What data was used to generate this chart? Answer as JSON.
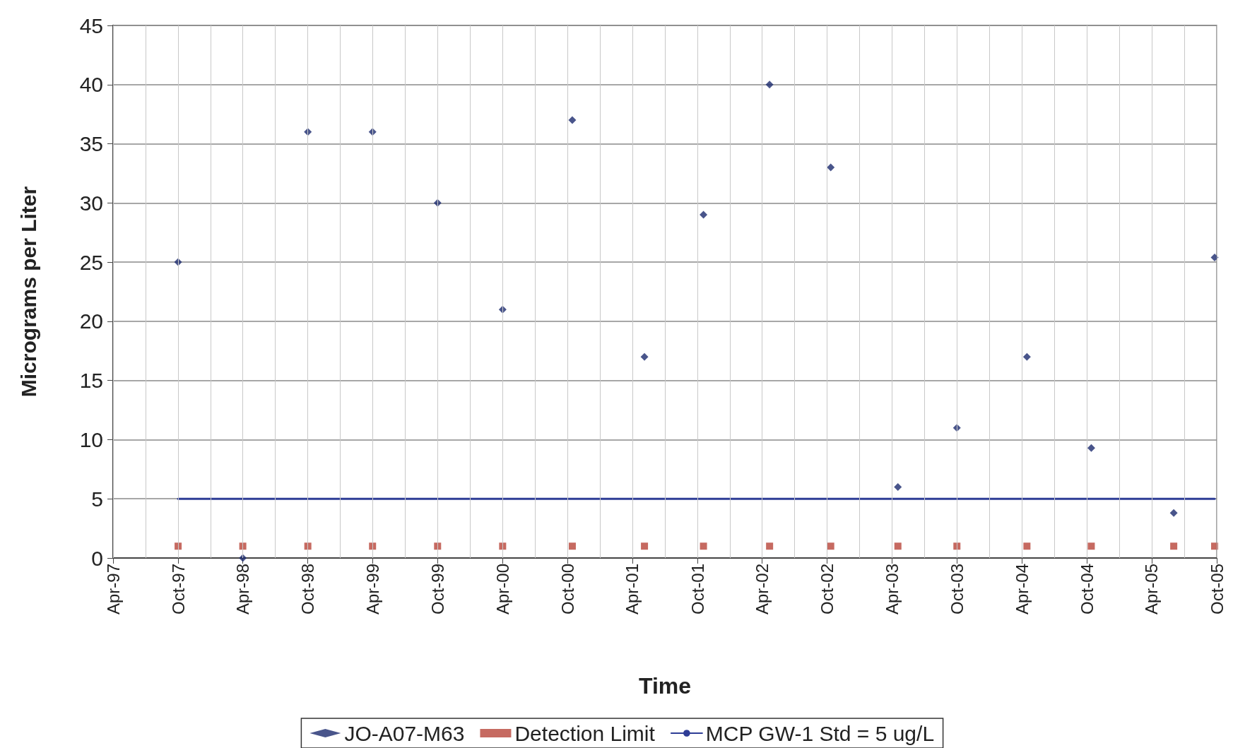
{
  "chart_data": {
    "type": "scatter",
    "xlabel": "Time",
    "ylabel": "Micrograms per Liter",
    "x": [
      "1997-10-01",
      "1998-04-01",
      "1998-10-01",
      "1999-04-01",
      "1999-10-01",
      "2000-04-01",
      "2000-10-14",
      "2001-05-05",
      "2001-10-18",
      "2002-04-22",
      "2002-10-11",
      "2003-04-18",
      "2003-10-01",
      "2004-04-15",
      "2004-10-13",
      "2005-06-02",
      "2005-09-25"
    ],
    "series": [
      {
        "name": "JO-A07-M63",
        "color": "#1c2a6e",
        "marker": "diamond",
        "values": [
          25,
          0,
          36,
          36,
          30,
          21,
          37,
          17,
          29,
          40,
          33,
          6,
          11,
          17,
          9.3,
          3.8,
          25.4
        ]
      },
      {
        "name": "Detection Limit",
        "color": "#b8453a",
        "marker": "square",
        "values": [
          1,
          1,
          1,
          1,
          1,
          1,
          1,
          1,
          1,
          1,
          1,
          1,
          1,
          1,
          1,
          1,
          1
        ]
      },
      {
        "name": "MCP GW-1 Std = 5 ug/L",
        "type": "line",
        "color": "#2e3d96",
        "marker": "none",
        "line_style": "solid",
        "x": [
          "1997-10-01",
          "2005-09-25"
        ],
        "values": [
          5,
          5
        ]
      }
    ],
    "xlim": [
      "1997-04-01",
      "2005-10-01"
    ],
    "xticks": [
      {
        "value": "1997-04-01",
        "label": "Apr-97"
      },
      {
        "value": "1997-10-01",
        "label": "Oct-97"
      },
      {
        "value": "1998-04-01",
        "label": "Apr-98"
      },
      {
        "value": "1998-10-01",
        "label": "Oct-98"
      },
      {
        "value": "1999-04-01",
        "label": "Apr-99"
      },
      {
        "value": "1999-10-01",
        "label": "Oct-99"
      },
      {
        "value": "2000-04-01",
        "label": "Apr-00"
      },
      {
        "value": "2000-10-01",
        "label": "Oct-00"
      },
      {
        "value": "2001-04-01",
        "label": "Apr-01"
      },
      {
        "value": "2001-10-01",
        "label": "Oct-01"
      },
      {
        "value": "2002-04-01",
        "label": "Apr-02"
      },
      {
        "value": "2002-10-01",
        "label": "Oct-02"
      },
      {
        "value": "2003-04-01",
        "label": "Apr-03"
      },
      {
        "value": "2003-10-01",
        "label": "Oct-03"
      },
      {
        "value": "2004-04-01",
        "label": "Apr-04"
      },
      {
        "value": "2004-10-01",
        "label": "Oct-04"
      },
      {
        "value": "2005-04-01",
        "label": "Apr-05"
      },
      {
        "value": "2005-10-01",
        "label": "Oct-05"
      }
    ],
    "ylim": [
      0,
      45
    ],
    "yticks": [
      0,
      5,
      10,
      15,
      20,
      25,
      30,
      35,
      40,
      45
    ],
    "grid": true,
    "legend": "bottom"
  }
}
